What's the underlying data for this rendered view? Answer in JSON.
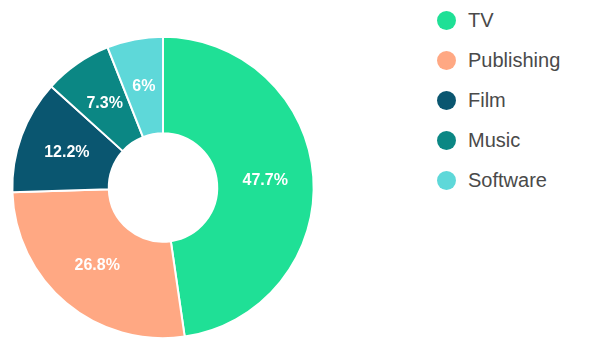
{
  "chart_data": {
    "type": "doughnut",
    "categories": [
      "TV",
      "Publishing",
      "Film",
      "Music",
      "Software"
    ],
    "values": [
      47.7,
      26.8,
      12.2,
      7.3,
      6
    ],
    "value_labels": [
      "47.7%",
      "26.8%",
      "12.2%",
      "7.3%",
      "6%"
    ],
    "colors": [
      "#1fe096",
      "#ffa883",
      "#0a5670",
      "#0b8784",
      "#5ed8d9"
    ],
    "legend": "right",
    "data_labels": true
  }
}
